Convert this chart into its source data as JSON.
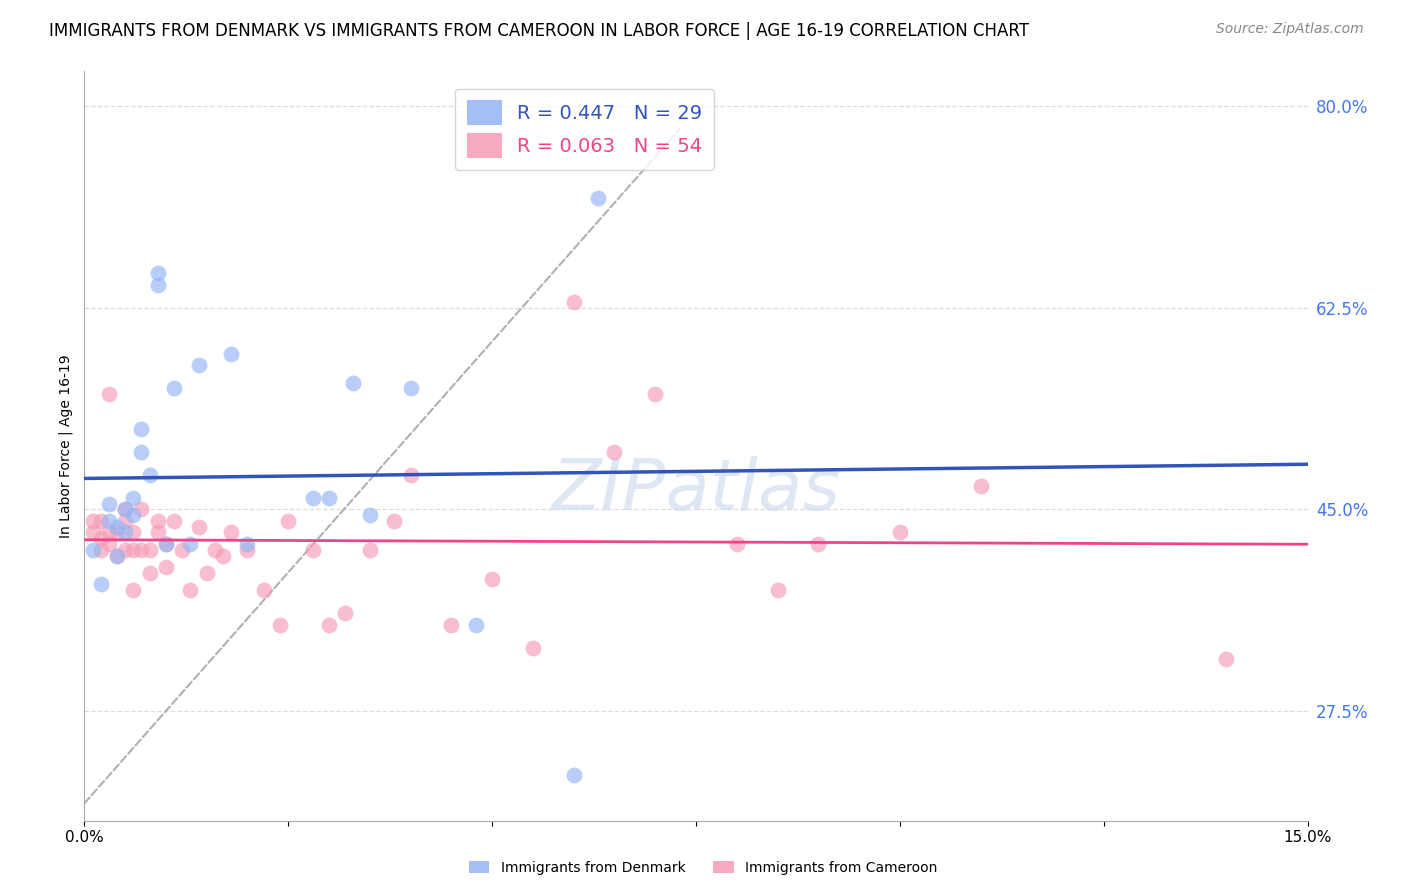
{
  "title": "IMMIGRANTS FROM DENMARK VS IMMIGRANTS FROM CAMEROON IN LABOR FORCE | AGE 16-19 CORRELATION CHART",
  "source": "Source: ZipAtlas.com",
  "ylabel": "In Labor Force | Age 16-19",
  "watermark": "ZIPatlas",
  "denmark_R": 0.447,
  "denmark_N": 29,
  "cameroon_R": 0.063,
  "cameroon_N": 54,
  "denmark_color": "#92b4f5",
  "cameroon_color": "#f59ab4",
  "denmark_line_color": "#3355bb",
  "cameroon_line_color": "#ee4488",
  "right_tick_color": "#4477ee",
  "xlim": [
    0.0,
    0.15
  ],
  "ylim": [
    0.18,
    0.83
  ],
  "right_yticks": [
    0.275,
    0.45,
    0.625,
    0.8
  ],
  "right_yticklabels": [
    "27.5%",
    "45.0%",
    "62.5%",
    "80.0%"
  ],
  "xtick_positions": [
    0.0,
    0.025,
    0.05,
    0.075,
    0.1,
    0.125,
    0.15
  ],
  "xtick_labels": [
    "0.0%",
    "",
    "",
    "",
    "",
    "",
    "15.0%"
  ],
  "denmark_x": [
    0.001,
    0.002,
    0.003,
    0.003,
    0.004,
    0.004,
    0.005,
    0.005,
    0.006,
    0.006,
    0.007,
    0.007,
    0.008,
    0.009,
    0.009,
    0.01,
    0.011,
    0.013,
    0.014,
    0.018,
    0.02,
    0.028,
    0.03,
    0.033,
    0.035,
    0.04,
    0.048,
    0.06,
    0.063
  ],
  "denmark_y": [
    0.415,
    0.385,
    0.44,
    0.455,
    0.41,
    0.435,
    0.43,
    0.45,
    0.445,
    0.46,
    0.5,
    0.52,
    0.48,
    0.645,
    0.655,
    0.42,
    0.555,
    0.42,
    0.575,
    0.585,
    0.42,
    0.46,
    0.46,
    0.56,
    0.445,
    0.555,
    0.35,
    0.22,
    0.72
  ],
  "cameroon_x": [
    0.001,
    0.001,
    0.002,
    0.002,
    0.002,
    0.003,
    0.003,
    0.003,
    0.004,
    0.004,
    0.005,
    0.005,
    0.005,
    0.006,
    0.006,
    0.006,
    0.007,
    0.007,
    0.008,
    0.008,
    0.009,
    0.009,
    0.01,
    0.01,
    0.011,
    0.012,
    0.013,
    0.014,
    0.015,
    0.016,
    0.017,
    0.018,
    0.02,
    0.022,
    0.024,
    0.025,
    0.028,
    0.03,
    0.032,
    0.035,
    0.038,
    0.04,
    0.045,
    0.05,
    0.055,
    0.06,
    0.065,
    0.07,
    0.08,
    0.085,
    0.09,
    0.1,
    0.11,
    0.14
  ],
  "cameroon_y": [
    0.43,
    0.44,
    0.415,
    0.425,
    0.44,
    0.42,
    0.43,
    0.55,
    0.41,
    0.43,
    0.415,
    0.44,
    0.45,
    0.38,
    0.415,
    0.43,
    0.415,
    0.45,
    0.395,
    0.415,
    0.43,
    0.44,
    0.4,
    0.42,
    0.44,
    0.415,
    0.38,
    0.435,
    0.395,
    0.415,
    0.41,
    0.43,
    0.415,
    0.38,
    0.35,
    0.44,
    0.415,
    0.35,
    0.36,
    0.415,
    0.44,
    0.48,
    0.35,
    0.39,
    0.33,
    0.63,
    0.5,
    0.55,
    0.42,
    0.38,
    0.42,
    0.43,
    0.47,
    0.32
  ],
  "grid_color": "#dddddd",
  "bg_color": "#ffffff",
  "title_fontsize": 12,
  "source_fontsize": 10,
  "ylabel_fontsize": 10,
  "tick_fontsize": 11,
  "legend_fontsize": 14,
  "watermark_fontsize": 52,
  "watermark_color": "#ccd8ee",
  "watermark_alpha": 0.6,
  "dot_size": 130,
  "dot_alpha": 0.65,
  "ref_line_x": [
    0.0,
    0.073
  ],
  "ref_line_y": [
    0.195,
    0.78
  ]
}
